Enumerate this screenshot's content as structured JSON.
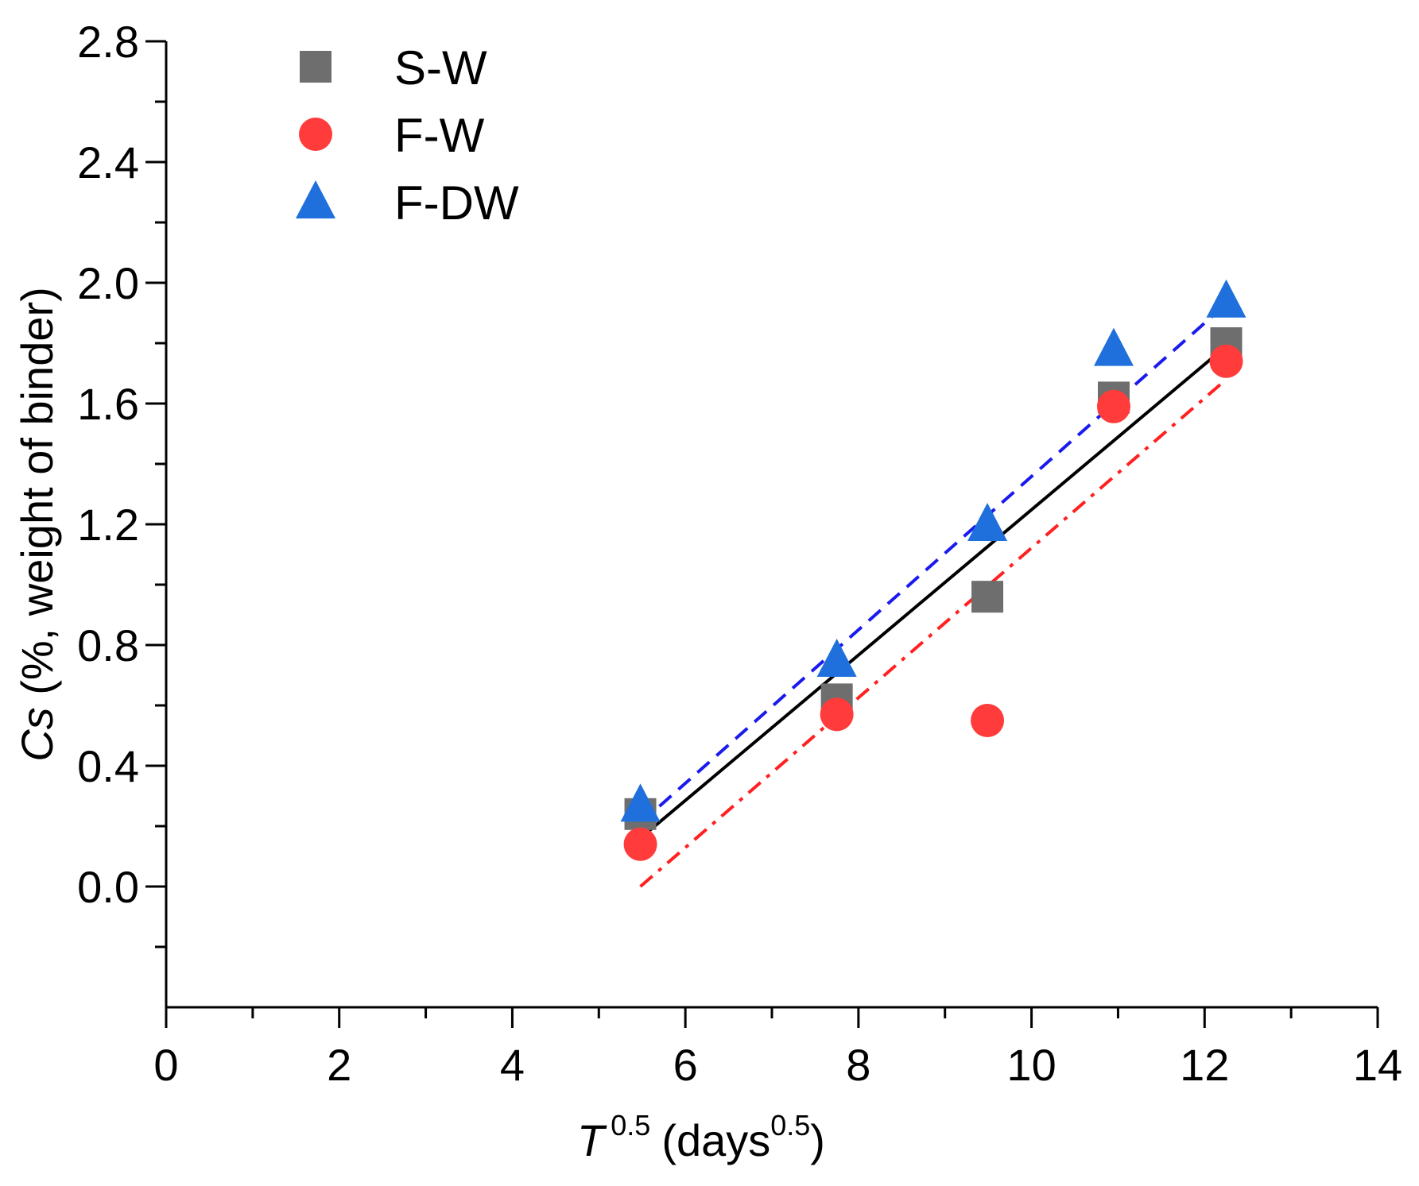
{
  "chart_data": {
    "type": "scatter",
    "title": "",
    "xlabel_main": "T",
    "xlabel_exp": "0.5",
    "xlabel_unit": "(days",
    "xlabel_unit_exp": "0.5",
    "xlabel_close": ")",
    "ylabel_main": "Cs",
    "ylabel_rest": " (%, weight of binder)",
    "xlim": [
      0,
      14
    ],
    "ylim": [
      -0.4,
      2.8
    ],
    "x_ticks": [
      "0",
      "2",
      "4",
      "6",
      "8",
      "10",
      "12",
      "14"
    ],
    "y_ticks": [
      "0.0",
      "0.4",
      "0.8",
      "1.2",
      "1.6",
      "2.0",
      "2.4",
      "2.8"
    ],
    "legend_position": "top-left",
    "grid": false,
    "series": [
      {
        "name": "S-W",
        "marker": "square",
        "color": "#6e6e6e",
        "points": [
          [
            5.48,
            0.24
          ],
          [
            7.75,
            0.62
          ],
          [
            9.49,
            0.96
          ],
          [
            10.95,
            1.62
          ],
          [
            12.25,
            1.8
          ]
        ],
        "fit": {
          "x": [
            5.48,
            12.25
          ],
          "y": [
            0.16,
            1.79
          ],
          "color": "#000000",
          "style": "solid"
        }
      },
      {
        "name": "F-W",
        "marker": "circle",
        "color": "#ff3b3b",
        "points": [
          [
            5.48,
            0.14
          ],
          [
            7.75,
            0.57
          ],
          [
            9.49,
            0.55
          ],
          [
            10.95,
            1.59
          ],
          [
            12.25,
            1.74
          ]
        ],
        "fit": {
          "x": [
            5.48,
            12.25
          ],
          "y": [
            0.0,
            1.68
          ],
          "color": "#ff2020",
          "style": "dashdot"
        }
      },
      {
        "name": "F-DW",
        "marker": "triangle",
        "color": "#1f6fdc",
        "points": [
          [
            5.48,
            0.27
          ],
          [
            7.75,
            0.75
          ],
          [
            9.49,
            1.2
          ],
          [
            10.95,
            1.78
          ],
          [
            12.25,
            1.94
          ]
        ],
        "fit": {
          "x": [
            5.48,
            12.25
          ],
          "y": [
            0.21,
            1.93
          ],
          "color": "#1a1aee",
          "style": "dash"
        }
      }
    ]
  }
}
